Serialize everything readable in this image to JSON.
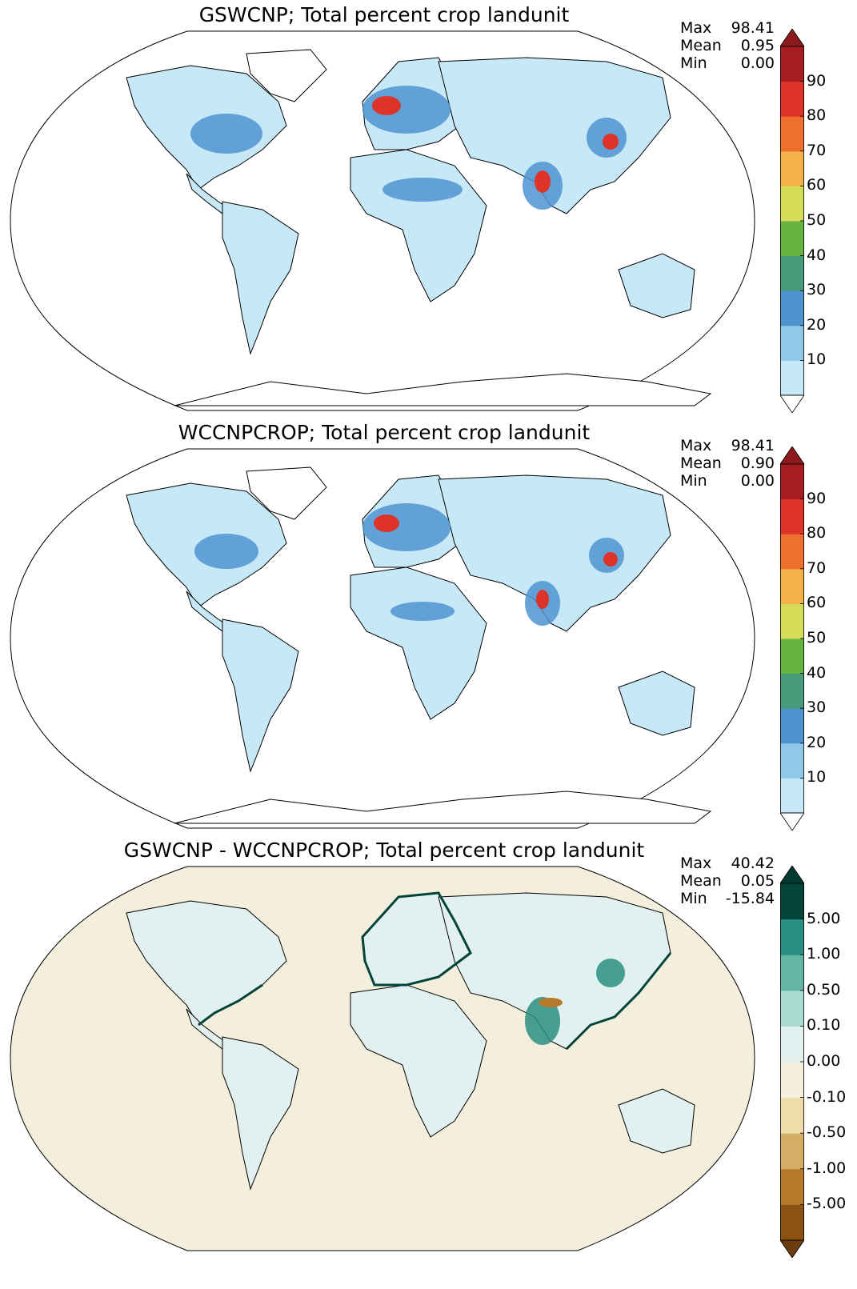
{
  "panels": [
    {
      "title": "GSWCNP; Total percent crop landunit",
      "stats": {
        "max_label": "Max",
        "max": "98.41",
        "mean_label": "Mean",
        "mean": "0.95",
        "min_label": "Min",
        "min": "0.00"
      },
      "ocean_color": "#ffffff",
      "colorbar": {
        "ticks": [
          "10",
          "20",
          "30",
          "40",
          "50",
          "60",
          "70",
          "80",
          "90"
        ],
        "colors": [
          "#c6e8f7",
          "#8fc8ea",
          "#4f94d1",
          "#479a7a",
          "#66b43f",
          "#d4dc58",
          "#f4b14a",
          "#ef6f2f",
          "#dd3328",
          "#a51d1f"
        ],
        "under_color": "#ffffff",
        "over_color": "#8c1a1c"
      }
    },
    {
      "title": "WCCNPCROP; Total percent crop landunit",
      "stats": {
        "max_label": "Max",
        "max": "98.41",
        "mean_label": "Mean",
        "mean": "0.90",
        "min_label": "Min",
        "min": "0.00"
      },
      "ocean_color": "#ffffff",
      "colorbar": {
        "ticks": [
          "10",
          "20",
          "30",
          "40",
          "50",
          "60",
          "70",
          "80",
          "90"
        ],
        "colors": [
          "#c6e8f7",
          "#8fc8ea",
          "#4f94d1",
          "#479a7a",
          "#66b43f",
          "#d4dc58",
          "#f4b14a",
          "#ef6f2f",
          "#dd3328",
          "#a51d1f"
        ],
        "under_color": "#ffffff",
        "over_color": "#8c1a1c"
      }
    },
    {
      "title": "GSWCNP - WCCNPCROP; Total percent crop landunit",
      "stats": {
        "max_label": "Max",
        "max": "40.42",
        "mean_label": "Mean",
        "mean": "0.05",
        "min_label": "Min",
        "min": "-15.84"
      },
      "ocean_color": "#f4eedc",
      "colorbar": {
        "ticks": [
          "-5.00",
          "-1.00",
          "-0.50",
          "-0.10",
          "0.00",
          "0.10",
          "0.50",
          "1.00",
          "5.00"
        ],
        "colors": [
          "#8b5214",
          "#b57a2c",
          "#d6ad64",
          "#eedcaa",
          "#f6efde",
          "#e2f1ef",
          "#aadbd1",
          "#65b5a5",
          "#2a8e81",
          "#02443a"
        ],
        "under_color": "#6b3d0e",
        "over_color": "#003a30"
      }
    }
  ]
}
